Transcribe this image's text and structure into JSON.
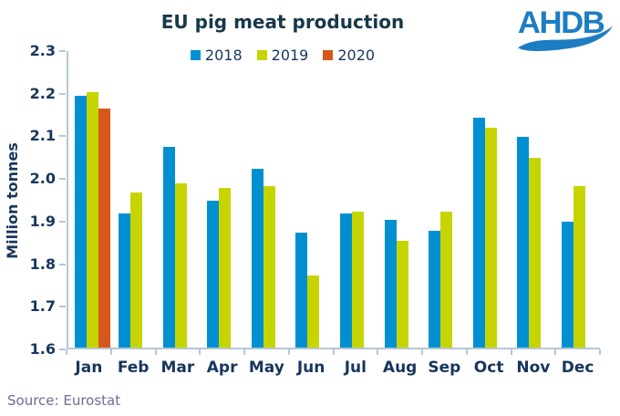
{
  "title": "EU pig meat production",
  "logo": {
    "text": "AHDB",
    "color": "#1d7dc2"
  },
  "source": "Source: Eurostat",
  "colors": {
    "title_text": "#16384a",
    "axis_text": "#17365d",
    "axis_line": "#b5c7d5",
    "source_text": "#6d6d96",
    "series_2018": "#0090d2",
    "series_2019": "#c6d400",
    "series_2020": "#d5571b",
    "background": "#ffffff"
  },
  "chart_data": {
    "type": "bar",
    "title": "EU pig meat production",
    "xlabel": "",
    "ylabel": "Million tonnes",
    "ylim": [
      1.6,
      2.3
    ],
    "ytick_step": 0.1,
    "ytick_labels": [
      "1.6",
      "1.7",
      "1.8",
      "1.9",
      "2.0",
      "2.1",
      "2.2",
      "2.3"
    ],
    "grid": false,
    "legend_position": "top-center",
    "categories": [
      "Jan",
      "Feb",
      "Mar",
      "Apr",
      "May",
      "Jun",
      "Jul",
      "Aug",
      "Sep",
      "Oct",
      "Nov",
      "Dec"
    ],
    "series": [
      {
        "name": "2018",
        "color": "#0090d2",
        "values": [
          2.19,
          1.915,
          2.07,
          1.945,
          2.02,
          1.87,
          1.915,
          1.9,
          1.875,
          2.14,
          2.095,
          1.895
        ]
      },
      {
        "name": "2019",
        "color": "#c6d400",
        "values": [
          2.2,
          1.965,
          1.985,
          1.975,
          1.98,
          1.77,
          1.92,
          1.85,
          1.92,
          2.115,
          2.045,
          1.98
        ]
      },
      {
        "name": "2020",
        "color": "#d5571b",
        "values": [
          2.16,
          null,
          null,
          null,
          null,
          null,
          null,
          null,
          null,
          null,
          null,
          null
        ]
      }
    ]
  }
}
